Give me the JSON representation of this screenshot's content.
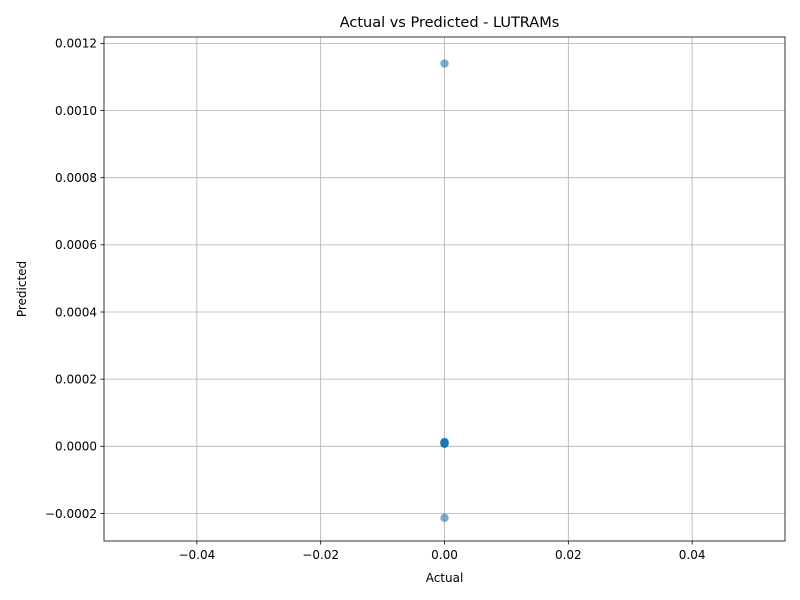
{
  "chart_data": {
    "type": "scatter",
    "title": "Actual vs Predicted - LUTRAMs",
    "xlabel": "Actual",
    "ylabel": "Predicted",
    "xlim": [
      -0.055,
      0.055
    ],
    "ylim": [
      -0.000282,
      0.001219
    ],
    "xticks": [
      -0.04,
      -0.02,
      0.0,
      0.02,
      0.04
    ],
    "xtick_labels": [
      "−0.04",
      "−0.02",
      "0.00",
      "0.02",
      "0.04"
    ],
    "yticks": [
      -0.0002,
      0.0,
      0.0002,
      0.0004,
      0.0006,
      0.0008,
      0.001,
      0.0012
    ],
    "ytick_labels": [
      "−0.0002",
      "0.0000",
      "0.0002",
      "0.0004",
      "0.0006",
      "0.0008",
      "0.0010",
      "0.0012"
    ],
    "grid": true,
    "marker_color": "#1f77b4",
    "marker_alpha": 0.6,
    "series": [
      {
        "x": [
          0,
          0,
          0,
          0,
          0,
          0,
          0,
          0,
          0,
          0
        ],
        "y": [
          0.00114,
          1.2e-05,
          1e-05,
          8e-06,
          1.1e-05,
          9e-06,
          1.3e-05,
          7e-06,
          1e-05,
          -0.000213
        ]
      }
    ]
  }
}
